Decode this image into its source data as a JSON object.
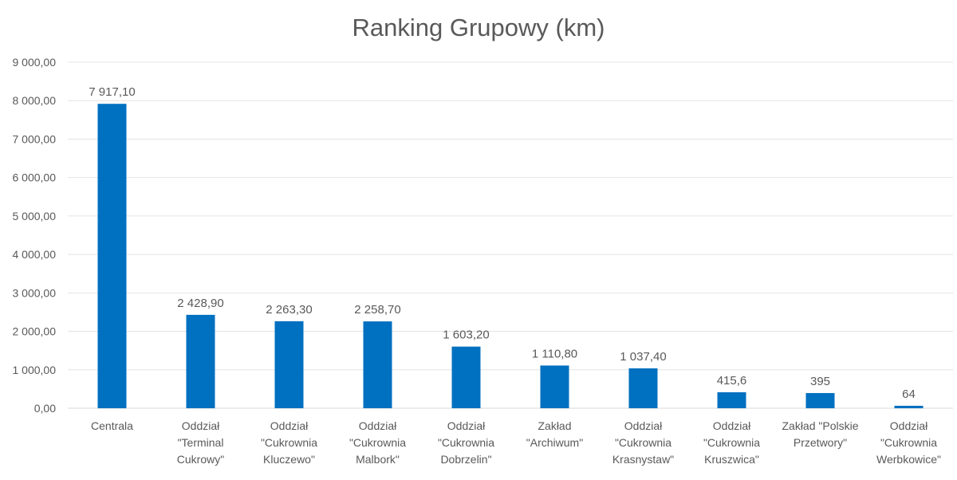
{
  "chart_data": {
    "type": "bar",
    "title": "Ranking Grupowy (km)",
    "xlabel": "",
    "ylabel": "",
    "ylim": [
      0,
      9000
    ],
    "yticks": [
      0,
      1000,
      2000,
      3000,
      4000,
      5000,
      6000,
      7000,
      8000,
      9000
    ],
    "ytick_labels": [
      "0,00",
      "1 000,00",
      "2 000,00",
      "3 000,00",
      "4 000,00",
      "5 000,00",
      "6 000,00",
      "7 000,00",
      "8 000,00",
      "9 000,00"
    ],
    "grid": true,
    "bar_color": "#0070C0",
    "categories": [
      [
        "Centrala"
      ],
      [
        "Oddział",
        "\"Terminal",
        "Cukrowy\""
      ],
      [
        "Oddział",
        "\"Cukrownia",
        "Kluczewo\""
      ],
      [
        "Oddział",
        "\"Cukrownia",
        "Malbork\""
      ],
      [
        "Oddział",
        "\"Cukrownia",
        "Dobrzelin\""
      ],
      [
        "Zakład",
        "\"Archiwum\""
      ],
      [
        "Oddział",
        "\"Cukrownia",
        "Krasnystaw\""
      ],
      [
        "Oddział",
        "\"Cukrownia",
        "Kruszwica\""
      ],
      [
        "Zakład \"Polskie",
        "Przetwory\""
      ],
      [
        "Oddział",
        "\"Cukrownia",
        "Werbkowice\""
      ]
    ],
    "values": [
      7917.1,
      2428.9,
      2263.3,
      2258.7,
      1603.2,
      1110.8,
      1037.4,
      415.6,
      395,
      64
    ],
    "data_labels": [
      "7 917,10",
      "2 428,90",
      "2 263,30",
      "2 258,70",
      "1 603,20",
      "1 110,80",
      "1 037,40",
      "415,6",
      "395",
      "64"
    ]
  }
}
